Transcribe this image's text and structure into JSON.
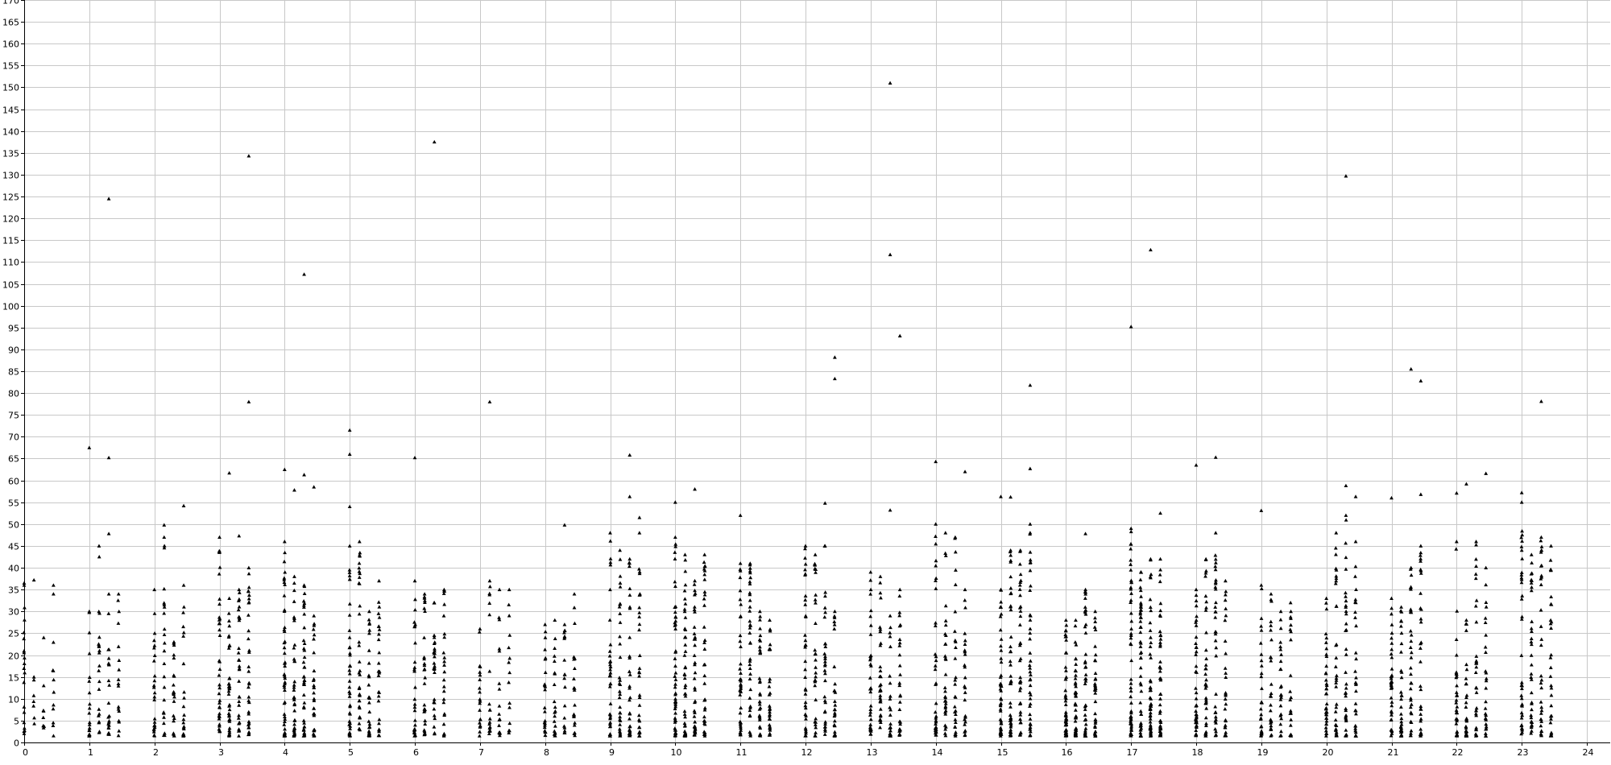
{
  "chart_data": {
    "type": "scatter",
    "title": "",
    "xlabel": "",
    "ylabel": "",
    "xlim": [
      0,
      24
    ],
    "ylim": [
      0,
      170
    ],
    "x_ticks": [
      0,
      1,
      2,
      3,
      4,
      5,
      6,
      7,
      8,
      9,
      10,
      11,
      12,
      13,
      14,
      15,
      16,
      17,
      18,
      19,
      20,
      21,
      22,
      23,
      24
    ],
    "y_ticks": [
      0,
      5,
      10,
      15,
      20,
      25,
      30,
      35,
      40,
      45,
      50,
      55,
      60,
      65,
      70,
      75,
      80,
      85,
      90,
      95,
      100,
      105,
      110,
      115,
      120,
      125,
      130,
      135,
      140,
      145,
      150,
      155,
      160,
      165,
      170
    ],
    "grid": true,
    "marker": "triangle",
    "color": "#000000",
    "outliers": [
      {
        "x": 0.0,
        "y": 36.5
      },
      {
        "x": 0.15,
        "y": 37.2
      },
      {
        "x": 0.3,
        "y": 24
      },
      {
        "x": 0.45,
        "y": 36
      },
      {
        "x": 1.0,
        "y": 67.5
      },
      {
        "x": 1.3,
        "y": 124.5
      },
      {
        "x": 1.3,
        "y": 65.2
      },
      {
        "x": 1.3,
        "y": 47.8
      },
      {
        "x": 2.15,
        "y": 49.8
      },
      {
        "x": 2.45,
        "y": 54.2
      },
      {
        "x": 3.15,
        "y": 61.7
      },
      {
        "x": 3.3,
        "y": 47.3
      },
      {
        "x": 3.45,
        "y": 134.3
      },
      {
        "x": 3.45,
        "y": 78
      },
      {
        "x": 4.0,
        "y": 62.5
      },
      {
        "x": 4.15,
        "y": 57.8
      },
      {
        "x": 4.3,
        "y": 107.2
      },
      {
        "x": 4.3,
        "y": 61.3
      },
      {
        "x": 4.45,
        "y": 58.5
      },
      {
        "x": 5.0,
        "y": 71.5
      },
      {
        "x": 5.0,
        "y": 66
      },
      {
        "x": 5.0,
        "y": 54
      },
      {
        "x": 6.0,
        "y": 65.2
      },
      {
        "x": 6.3,
        "y": 137.5
      },
      {
        "x": 7.15,
        "y": 78
      },
      {
        "x": 8.3,
        "y": 49.8
      },
      {
        "x": 9.3,
        "y": 65.8
      },
      {
        "x": 9.3,
        "y": 56.3
      },
      {
        "x": 9.45,
        "y": 51.5
      },
      {
        "x": 10.0,
        "y": 55
      },
      {
        "x": 10.3,
        "y": 58
      },
      {
        "x": 11.0,
        "y": 52
      },
      {
        "x": 12.3,
        "y": 54.8
      },
      {
        "x": 12.45,
        "y": 88.2
      },
      {
        "x": 12.45,
        "y": 83.3
      },
      {
        "x": 13.3,
        "y": 151
      },
      {
        "x": 13.3,
        "y": 111.7
      },
      {
        "x": 13.45,
        "y": 93.1
      },
      {
        "x": 13.3,
        "y": 53.2
      },
      {
        "x": 14.0,
        "y": 64.3
      },
      {
        "x": 14.45,
        "y": 62
      },
      {
        "x": 15.0,
        "y": 56.3
      },
      {
        "x": 15.15,
        "y": 56.2
      },
      {
        "x": 15.45,
        "y": 81.8
      },
      {
        "x": 15.45,
        "y": 62.7
      },
      {
        "x": 16.3,
        "y": 47.8
      },
      {
        "x": 17.0,
        "y": 95.2
      },
      {
        "x": 17.3,
        "y": 112.8
      },
      {
        "x": 17.45,
        "y": 52.5
      },
      {
        "x": 18.0,
        "y": 63.5
      },
      {
        "x": 18.3,
        "y": 65.3
      },
      {
        "x": 19.0,
        "y": 53.1
      },
      {
        "x": 20.3,
        "y": 129.7
      },
      {
        "x": 20.3,
        "y": 58.8
      },
      {
        "x": 20.45,
        "y": 56.3
      },
      {
        "x": 21.0,
        "y": 56
      },
      {
        "x": 21.3,
        "y": 85.5
      },
      {
        "x": 21.45,
        "y": 82.8
      },
      {
        "x": 21.45,
        "y": 56.8
      },
      {
        "x": 22.0,
        "y": 57.1
      },
      {
        "x": 22.15,
        "y": 59.2
      },
      {
        "x": 22.45,
        "y": 61.6
      },
      {
        "x": 23.0,
        "y": 57.2
      },
      {
        "x": 23.3,
        "y": 78.1
      }
    ],
    "columns": [
      {
        "x": 0.0,
        "n": 18,
        "max": 36
      },
      {
        "x": 0.15,
        "n": 6,
        "max": 15
      },
      {
        "x": 0.3,
        "n": 6,
        "max": 13
      },
      {
        "x": 0.45,
        "n": 10,
        "max": 34
      },
      {
        "x": 1.0,
        "n": 18,
        "max": 30
      },
      {
        "x": 1.15,
        "n": 20,
        "max": 45
      },
      {
        "x": 1.3,
        "n": 22,
        "max": 34
      },
      {
        "x": 1.45,
        "n": 16,
        "max": 34
      },
      {
        "x": 2.0,
        "n": 24,
        "max": 35
      },
      {
        "x": 2.15,
        "n": 22,
        "max": 47
      },
      {
        "x": 2.3,
        "n": 20,
        "max": 23
      },
      {
        "x": 2.45,
        "n": 22,
        "max": 36
      },
      {
        "x": 3.0,
        "n": 36,
        "max": 47
      },
      {
        "x": 3.15,
        "n": 34,
        "max": 33
      },
      {
        "x": 3.3,
        "n": 30,
        "max": 35
      },
      {
        "x": 3.45,
        "n": 32,
        "max": 40
      },
      {
        "x": 4.0,
        "n": 48,
        "max": 46
      },
      {
        "x": 4.15,
        "n": 36,
        "max": 38
      },
      {
        "x": 4.3,
        "n": 40,
        "max": 36
      },
      {
        "x": 4.45,
        "n": 30,
        "max": 29
      },
      {
        "x": 5.0,
        "n": 40,
        "max": 45
      },
      {
        "x": 5.15,
        "n": 34,
        "max": 46
      },
      {
        "x": 5.3,
        "n": 30,
        "max": 30
      },
      {
        "x": 5.45,
        "n": 26,
        "max": 37
      },
      {
        "x": 6.0,
        "n": 30,
        "max": 37
      },
      {
        "x": 6.15,
        "n": 28,
        "max": 34
      },
      {
        "x": 6.3,
        "n": 26,
        "max": 32
      },
      {
        "x": 6.45,
        "n": 24,
        "max": 35
      },
      {
        "x": 7.0,
        "n": 20,
        "max": 26
      },
      {
        "x": 7.15,
        "n": 18,
        "max": 37
      },
      {
        "x": 7.3,
        "n": 16,
        "max": 35
      },
      {
        "x": 7.45,
        "n": 14,
        "max": 35
      },
      {
        "x": 8.0,
        "n": 22,
        "max": 27
      },
      {
        "x": 8.15,
        "n": 20,
        "max": 28
      },
      {
        "x": 8.3,
        "n": 18,
        "max": 27
      },
      {
        "x": 8.45,
        "n": 20,
        "max": 34
      },
      {
        "x": 9.0,
        "n": 36,
        "max": 48
      },
      {
        "x": 9.15,
        "n": 32,
        "max": 44
      },
      {
        "x": 9.3,
        "n": 34,
        "max": 42
      },
      {
        "x": 9.45,
        "n": 30,
        "max": 48
      },
      {
        "x": 10.0,
        "n": 52,
        "max": 47
      },
      {
        "x": 10.15,
        "n": 44,
        "max": 43
      },
      {
        "x": 10.3,
        "n": 40,
        "max": 37
      },
      {
        "x": 10.45,
        "n": 34,
        "max": 43
      },
      {
        "x": 11.0,
        "n": 40,
        "max": 41
      },
      {
        "x": 11.15,
        "n": 36,
        "max": 41
      },
      {
        "x": 11.3,
        "n": 32,
        "max": 30
      },
      {
        "x": 11.45,
        "n": 28,
        "max": 28
      },
      {
        "x": 12.0,
        "n": 36,
        "max": 45
      },
      {
        "x": 12.15,
        "n": 32,
        "max": 43
      },
      {
        "x": 12.3,
        "n": 30,
        "max": 45
      },
      {
        "x": 12.45,
        "n": 28,
        "max": 30
      },
      {
        "x": 13.0,
        "n": 34,
        "max": 39
      },
      {
        "x": 13.15,
        "n": 30,
        "max": 38
      },
      {
        "x": 13.3,
        "n": 26,
        "max": 29
      },
      {
        "x": 13.45,
        "n": 28,
        "max": 35
      },
      {
        "x": 14.0,
        "n": 36,
        "max": 50
      },
      {
        "x": 14.15,
        "n": 30,
        "max": 48
      },
      {
        "x": 14.3,
        "n": 28,
        "max": 47
      },
      {
        "x": 14.45,
        "n": 24,
        "max": 35
      },
      {
        "x": 15.0,
        "n": 44,
        "max": 35
      },
      {
        "x": 15.15,
        "n": 42,
        "max": 44
      },
      {
        "x": 15.3,
        "n": 38,
        "max": 44
      },
      {
        "x": 15.45,
        "n": 40,
        "max": 50
      },
      {
        "x": 16.0,
        "n": 52,
        "max": 28
      },
      {
        "x": 16.15,
        "n": 46,
        "max": 28
      },
      {
        "x": 16.3,
        "n": 40,
        "max": 35
      },
      {
        "x": 16.45,
        "n": 36,
        "max": 30
      },
      {
        "x": 17.0,
        "n": 54,
        "max": 49
      },
      {
        "x": 17.15,
        "n": 48,
        "max": 39
      },
      {
        "x": 17.3,
        "n": 50,
        "max": 42
      },
      {
        "x": 17.45,
        "n": 46,
        "max": 42
      },
      {
        "x": 18.0,
        "n": 44,
        "max": 35
      },
      {
        "x": 18.15,
        "n": 36,
        "max": 42
      },
      {
        "x": 18.3,
        "n": 34,
        "max": 48
      },
      {
        "x": 18.45,
        "n": 30,
        "max": 37
      },
      {
        "x": 19.0,
        "n": 30,
        "max": 36
      },
      {
        "x": 19.15,
        "n": 26,
        "max": 34
      },
      {
        "x": 19.3,
        "n": 24,
        "max": 30
      },
      {
        "x": 19.45,
        "n": 22,
        "max": 32
      },
      {
        "x": 20.0,
        "n": 36,
        "max": 33
      },
      {
        "x": 20.15,
        "n": 34,
        "max": 48
      },
      {
        "x": 20.3,
        "n": 36,
        "max": 52
      },
      {
        "x": 20.45,
        "n": 30,
        "max": 46
      },
      {
        "x": 21.0,
        "n": 38,
        "max": 33
      },
      {
        "x": 21.15,
        "n": 34,
        "max": 31
      },
      {
        "x": 21.3,
        "n": 32,
        "max": 40
      },
      {
        "x": 21.45,
        "n": 30,
        "max": 45
      },
      {
        "x": 22.0,
        "n": 32,
        "max": 46
      },
      {
        "x": 22.15,
        "n": 30,
        "max": 28
      },
      {
        "x": 22.3,
        "n": 30,
        "max": 46
      },
      {
        "x": 22.45,
        "n": 28,
        "max": 40
      },
      {
        "x": 23.0,
        "n": 36,
        "max": 55
      },
      {
        "x": 23.15,
        "n": 34,
        "max": 43
      },
      {
        "x": 23.3,
        "n": 32,
        "max": 47
      },
      {
        "x": 23.45,
        "n": 30,
        "max": 45
      }
    ]
  }
}
